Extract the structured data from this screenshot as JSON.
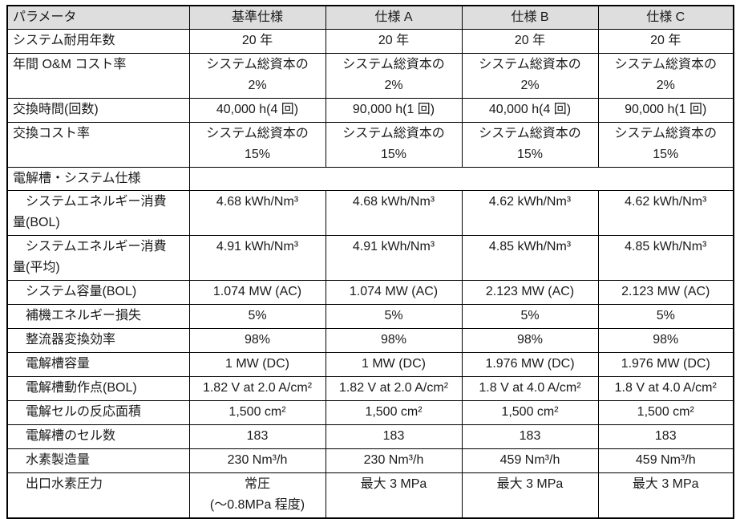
{
  "table": {
    "header_bg": "#dedede",
    "columns": [
      {
        "label": "パラメータ"
      },
      {
        "label": "基準仕様"
      },
      {
        "label": "仕様 A"
      },
      {
        "label": "仕様 B"
      },
      {
        "label": "仕様 C"
      }
    ],
    "rows": [
      {
        "label": "システム耐用年数",
        "indent": false,
        "section": false,
        "double": false,
        "values": [
          "20 年",
          "20 年",
          "20 年",
          "20 年"
        ]
      },
      {
        "label": "年間 O&M コスト率",
        "indent": false,
        "section": false,
        "double": true,
        "values": [
          "システム総資本の\n2%",
          "システム総資本の\n2%",
          "システム総資本の\n2%",
          "システム総資本の\n2%"
        ]
      },
      {
        "label": "交換時間(回数)",
        "indent": false,
        "section": false,
        "double": false,
        "values": [
          "40,000 h(4 回)",
          "90,000 h(1 回)",
          "40,000 h(4 回)",
          "90,000 h(1 回)"
        ]
      },
      {
        "label": "交換コスト率",
        "indent": false,
        "section": false,
        "double": true,
        "values": [
          "システム総資本の\n15%",
          "システム総資本の\n15%",
          "システム総資本の\n15%",
          "システム総資本の\n15%"
        ]
      },
      {
        "label": "電解槽・システム仕様",
        "indent": false,
        "section": true,
        "double": false,
        "values": []
      },
      {
        "label": "システムエネルギー消費\n量(BOL)",
        "indent": true,
        "section": false,
        "double": true,
        "values": [
          "4.68 kWh/Nm³",
          "4.68 kWh/Nm³",
          "4.62 kWh/Nm³",
          "4.62 kWh/Nm³"
        ]
      },
      {
        "label": "システムエネルギー消費\n量(平均)",
        "indent": true,
        "section": false,
        "double": true,
        "values": [
          "4.91 kWh/Nm³",
          "4.91 kWh/Nm³",
          "4.85 kWh/Nm³",
          "4.85 kWh/Nm³"
        ]
      },
      {
        "label": "システム容量(BOL)",
        "indent": true,
        "section": false,
        "double": false,
        "values": [
          "1.074 MW (AC)",
          "1.074 MW (AC)",
          "2.123 MW (AC)",
          "2.123 MW (AC)"
        ]
      },
      {
        "label": "補機エネルギー損失",
        "indent": true,
        "section": false,
        "double": false,
        "values": [
          "5%",
          "5%",
          "5%",
          "5%"
        ]
      },
      {
        "label": "整流器変換効率",
        "indent": true,
        "section": false,
        "double": false,
        "values": [
          "98%",
          "98%",
          "98%",
          "98%"
        ]
      },
      {
        "label": "電解槽容量",
        "indent": true,
        "section": false,
        "double": false,
        "values": [
          "1 MW (DC)",
          "1 MW (DC)",
          "1.976 MW (DC)",
          "1.976 MW (DC)"
        ]
      },
      {
        "label": "電解槽動作点(BOL)",
        "indent": true,
        "section": false,
        "double": false,
        "values": [
          "1.82 V at 2.0 A/cm²",
          "1.82 V at 2.0 A/cm²",
          "1.8 V at 4.0 A/cm²",
          "1.8 V at 4.0 A/cm²"
        ]
      },
      {
        "label": "電解セルの反応面積",
        "indent": true,
        "section": false,
        "double": false,
        "values": [
          "1,500 cm²",
          "1,500 cm²",
          "1,500 cm²",
          "1,500 cm²"
        ]
      },
      {
        "label": "電解槽のセル数",
        "indent": true,
        "section": false,
        "double": false,
        "values": [
          "183",
          "183",
          "183",
          "183"
        ]
      },
      {
        "label": "水素製造量",
        "indent": true,
        "section": false,
        "double": false,
        "values": [
          "230 Nm³/h",
          "230 Nm³/h",
          "459 Nm³/h",
          "459 Nm³/h"
        ]
      },
      {
        "label": "出口水素圧力",
        "indent": true,
        "section": false,
        "double": true,
        "values": [
          "常圧\n(〜0.8MPa 程度)",
          "最大 3 MPa",
          "最大 3 MPa",
          "最大 3 MPa"
        ]
      }
    ]
  }
}
